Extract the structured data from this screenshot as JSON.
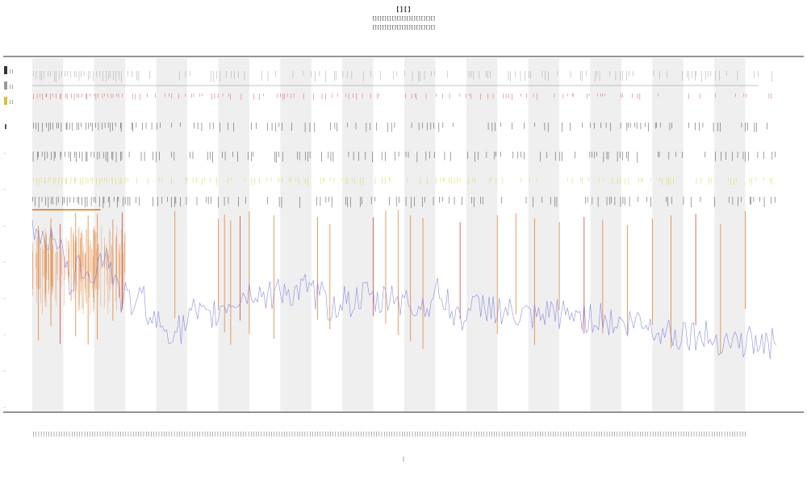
{
  "chart_data": {
    "type": "line",
    "title": "[][]",
    "subtitles": [
      "[][][][][][][][][][][][][]",
      "[][][][][][][][][][][][][]"
    ],
    "xlabel": "|",
    "ylabel": "",
    "x_range": [
      0,
      240
    ],
    "y_range": [
      0,
      100
    ],
    "grid": false,
    "legend_position": "top-left",
    "colors": {
      "series": "#6f6fe0",
      "spikes_orange": "#e0701a",
      "spikes_red": "#d02020",
      "band_shade": "#efefef",
      "marker_gray": "#9a9a9a",
      "marker_dark": "#303030",
      "marker_red": "#e04545",
      "marker_yellow": "#d8d235",
      "axis": "#555555"
    },
    "legend": [
      {
        "label": "[]",
        "color": "#333333"
      },
      {
        "label": "[]",
        "color": "#9a9a9a"
      },
      {
        "label": "[]",
        "color": "#d8c040"
      }
    ],
    "band_count": 12,
    "series": [
      {
        "name": "",
        "x": [
          0,
          4,
          8,
          12,
          16,
          20,
          24,
          28,
          32,
          36,
          40,
          44,
          48,
          52,
          56,
          60,
          64,
          68,
          72,
          76,
          80,
          84,
          88,
          92,
          96,
          100,
          104,
          108,
          112,
          116,
          120,
          124,
          128,
          132,
          136,
          140,
          144,
          148,
          152,
          156,
          160,
          164,
          168,
          172,
          176,
          180,
          184,
          188,
          192,
          196,
          200,
          204,
          208,
          212,
          216,
          220,
          224,
          228,
          232,
          236,
          240
        ],
        "values": [
          48,
          45,
          46,
          28,
          35,
          33,
          40,
          24,
          22,
          23,
          14,
          13,
          12,
          18,
          15,
          19,
          22,
          24,
          26,
          23,
          28,
          24,
          26,
          25,
          20,
          23,
          22,
          24,
          21,
          25,
          22,
          20,
          22,
          26,
          17,
          18,
          20,
          21,
          18,
          17,
          16,
          15,
          19,
          17,
          18,
          16,
          17,
          14,
          14,
          15,
          13,
          12,
          11,
          11,
          10,
          9,
          9,
          8,
          8,
          7,
          7
        ]
      }
    ],
    "x_ticks": [
      "|||||||||||||||||||||||||||||||||||||||||||||||||||||||||||||||||||||||||||||||||||||||||||||||||||||||||||||||||||||||||||||||||||||||||||||||||||||||||||||||||||||||||||||||||||||||||||||||||||||||||||||||||||||||||||||||||||||||||||||||||||||||||||||||||||||||||||||||||||||||"
    ],
    "marker_tracks": [
      "gray",
      "red",
      "dark",
      "dark",
      "yellow",
      "dark"
    ],
    "spike_x": [
      2,
      6,
      9,
      14,
      18,
      21,
      26,
      29,
      46,
      60,
      62,
      64,
      67,
      70,
      78,
      92,
      96,
      110,
      114,
      118,
      122,
      126,
      138,
      150,
      156,
      162,
      170,
      178,
      184,
      192,
      200,
      206,
      214,
      222,
      230
    ]
  }
}
